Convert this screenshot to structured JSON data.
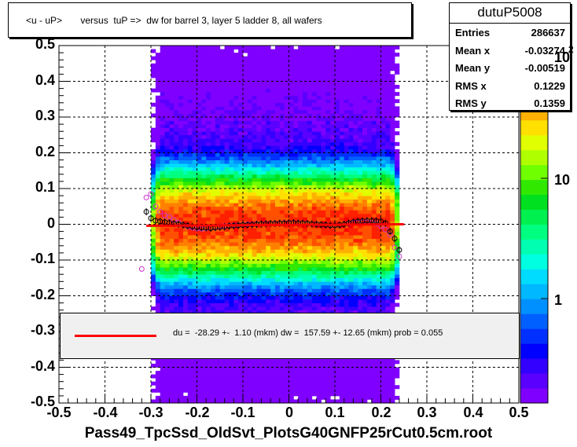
{
  "title": "<u - uP>       versus  tuP =>  dw for barrel 3, layer 5 ladder 8, all wafers",
  "stats": {
    "name": "dutuP5008",
    "rows": [
      {
        "label": "Entries",
        "value": "286637"
      },
      {
        "label": "Mean x",
        "value": "-0.03274"
      },
      {
        "label": "Mean y",
        "value": "-0.00519"
      },
      {
        "label": "RMS x",
        "value": "0.1229"
      },
      {
        "label": "RMS y",
        "value": "0.1359"
      }
    ]
  },
  "legend": {
    "text": "du =  -28.29 +-  1.10 (mkm) dw =  157.59 +- 12.65 (mkm) prob = 0.055",
    "line_color": "#ff0000"
  },
  "x_title": "Pass49_TpcSsd_OldSvt_PlotsG40GNFP25rCut0.5cm.root",
  "z_axis": {
    "ticks": [
      "1",
      "10",
      "10"
    ],
    "exponent_label": "2",
    "palette": [
      "#7f00ff",
      "#5a00ff",
      "#3300ff",
      "#0000ff",
      "#0030ff",
      "#0060ff",
      "#0090ff",
      "#00b8ff",
      "#00dcff",
      "#00ffe0",
      "#00ffb0",
      "#00ff80",
      "#00f050",
      "#00e020",
      "#30e800",
      "#70ff00",
      "#b0ff00",
      "#e0ff00",
      "#ffe000",
      "#ffb000",
      "#ff8000",
      "#ff5000",
      "#ff2000",
      "#ff0000"
    ]
  },
  "chart_data": {
    "type": "heatmap",
    "title": "<u - uP>       versus  tuP =>  dw for barrel 3, layer 5 ladder 8, all wafers",
    "xlabel": "Pass49_TpcSsd_OldSvt_PlotsG40GNFP25rCut0.5cm.root",
    "ylabel": "",
    "xlim": [
      -0.5,
      0.5
    ],
    "ylim": [
      -0.5,
      0.5
    ],
    "x_ticks": [
      "-0.5",
      "-0.4",
      "-0.3",
      "-0.2",
      "-0.1",
      "0",
      "0.1",
      "0.2",
      "0.3",
      "0.4",
      "0.5"
    ],
    "y_ticks": [
      "-0.5",
      "-0.4",
      "-0.3",
      "-0.2",
      "-0.1",
      "0",
      "0.1",
      "0.2",
      "0.3",
      "0.4",
      "0.5"
    ],
    "grid": true,
    "z_scale": "log",
    "fit_line": {
      "x": [
        -0.31,
        0.25
      ],
      "y": [
        -0.004,
        0.0
      ]
    },
    "profile_black": {
      "x": [
        -0.31,
        -0.3,
        -0.29,
        -0.28,
        -0.27,
        -0.26,
        -0.25,
        -0.24,
        -0.23,
        -0.22,
        -0.21,
        -0.2,
        -0.19,
        -0.18,
        -0.17,
        -0.16,
        -0.15,
        -0.14,
        -0.13,
        -0.12,
        -0.11,
        -0.1,
        -0.09,
        -0.08,
        -0.07,
        -0.06,
        -0.05,
        -0.04,
        -0.03,
        -0.02,
        -0.01,
        0.0,
        0.01,
        0.02,
        0.03,
        0.04,
        0.05,
        0.06,
        0.07,
        0.08,
        0.09,
        0.1,
        0.11,
        0.12,
        0.13,
        0.14,
        0.15,
        0.16,
        0.17,
        0.18,
        0.19,
        0.2,
        0.21,
        0.22,
        0.23,
        0.24
      ],
      "y": [
        0.035,
        0.017,
        0.01,
        0.008,
        0.006,
        0.004,
        0.002,
        0.0,
        -0.002,
        -0.004,
        -0.006,
        -0.008,
        -0.009,
        -0.01,
        -0.011,
        -0.009,
        -0.008,
        -0.007,
        -0.005,
        -0.004,
        -0.003,
        -0.002,
        -0.002,
        -0.001,
        0.0,
        0.001,
        0.001,
        0.002,
        0.002,
        0.003,
        0.003,
        0.004,
        0.004,
        0.003,
        0.003,
        0.002,
        0.001,
        0.0,
        -0.001,
        -0.002,
        -0.003,
        -0.003,
        -0.002,
        0.0,
        0.003,
        0.006,
        0.008,
        0.009,
        0.01,
        0.01,
        0.009,
        0.008,
        0.003,
        -0.02,
        -0.04,
        -0.072
      ]
    },
    "profile_magenta": {
      "x": [
        -0.31,
        -0.3,
        -0.29,
        -0.28,
        -0.27,
        -0.26,
        -0.25,
        -0.24,
        -0.23,
        -0.22,
        -0.21,
        -0.2,
        -0.19,
        -0.18,
        -0.17,
        -0.16,
        -0.15,
        -0.14,
        -0.13,
        -0.12,
        -0.11,
        -0.1,
        -0.09,
        -0.08,
        -0.07,
        -0.06,
        -0.05,
        -0.04,
        -0.03,
        -0.02,
        -0.01,
        0.0,
        0.01,
        0.02,
        0.03,
        0.04,
        0.05,
        0.06,
        0.07,
        0.08,
        0.09,
        0.1,
        0.11,
        0.12,
        0.13,
        0.14,
        0.15,
        0.16,
        0.17,
        0.18,
        0.19,
        0.2,
        0.21,
        0.22,
        0.23,
        0.24
      ],
      "y": [
        0.075,
        0.085,
        0.05,
        0.035,
        0.025,
        0.02,
        0.012,
        0.005,
        -0.002,
        -0.006,
        -0.009,
        -0.012,
        -0.013,
        -0.012,
        -0.01,
        -0.008,
        -0.006,
        -0.005,
        -0.004,
        -0.003,
        -0.002,
        -0.001,
        0.0,
        0.0,
        0.001,
        0.001,
        0.002,
        0.002,
        0.003,
        0.003,
        0.004,
        0.004,
        0.004,
        0.003,
        0.003,
        0.002,
        0.001,
        0.0,
        -0.001,
        -0.002,
        -0.003,
        -0.003,
        -0.002,
        0.0,
        0.002,
        0.004,
        0.005,
        0.006,
        0.006,
        0.004,
        0.002,
        -0.005,
        -0.015,
        -0.03,
        -0.065,
        -0.09
      ]
    },
    "outlier_magenta": {
      "x": -0.32,
      "y": -0.125
    },
    "density_model": {
      "x_half_width": 0.27,
      "x_center": -0.03,
      "band_sigma_y": 0.06,
      "peak_count": 250
    }
  }
}
